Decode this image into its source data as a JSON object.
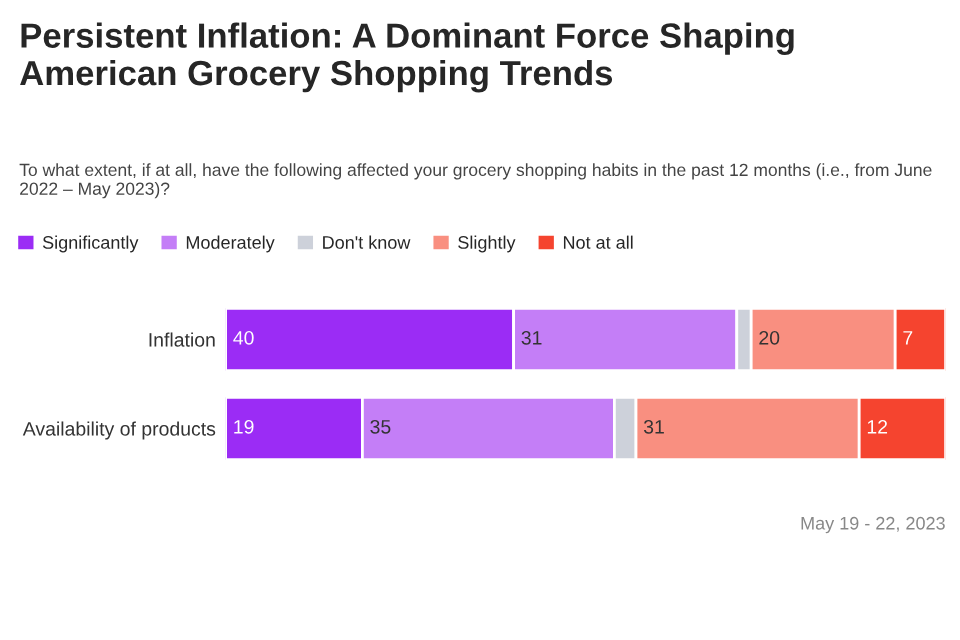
{
  "chart_data": {
    "type": "bar",
    "orientation": "horizontal",
    "stacked": true,
    "title": "Persistent Inflation: A Dominant Force Shaping American Grocery Shopping Trends",
    "subtitle": "To what extent, if at all, have the following affected your grocery shopping habits in the past 12 months (i.e., from June 2022 – May 2023)?",
    "categories": [
      "Inflation",
      "Availability of products"
    ],
    "series": [
      {
        "name": "Significantly",
        "color": "#9b2cf5",
        "values": [
          40,
          19
        ],
        "value_labels": [
          "40",
          "19"
        ]
      },
      {
        "name": "Moderately",
        "color": "#c47ef7",
        "values": [
          31,
          35
        ],
        "value_labels": [
          "31",
          "35"
        ]
      },
      {
        "name": "Don't know",
        "color": "#cdd1da",
        "values": [
          2,
          3
        ],
        "value_labels": [
          null,
          null
        ]
      },
      {
        "name": "Slightly",
        "color": "#f98f80",
        "values": [
          20,
          31
        ],
        "value_labels": [
          "20",
          "31"
        ]
      },
      {
        "name": "Not at all",
        "color": "#f5442f",
        "values": [
          7,
          12
        ],
        "value_labels": [
          "7",
          "12"
        ]
      }
    ],
    "xlim": [
      0,
      100
    ],
    "tick_labels": "y",
    "grid": false,
    "legend": "top left",
    "annotations": [
      "May 19 - 22, 2023"
    ]
  }
}
